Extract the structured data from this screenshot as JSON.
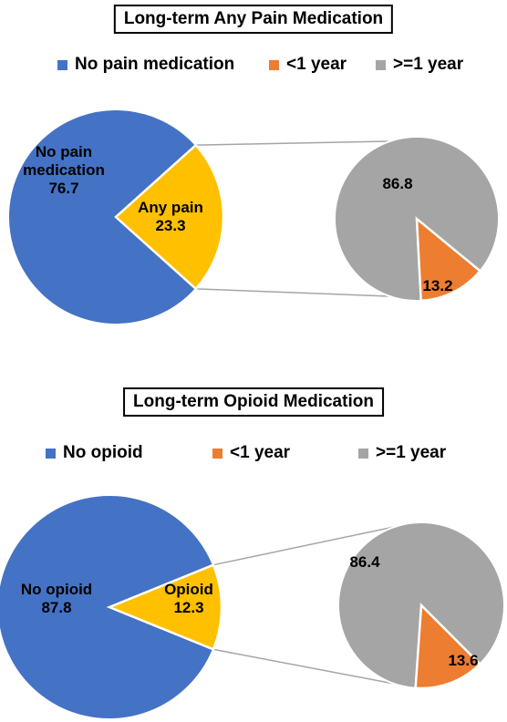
{
  "chart_data": [
    {
      "type": "pie",
      "title": "Long-term Any Pain Medication",
      "main_pie": {
        "slices": [
          {
            "name": "No pain medication",
            "value": 76.7,
            "label_lines": [
              "No pain",
              "medication",
              "76.7"
            ],
            "color": "#4472C4"
          },
          {
            "name": "Any pain",
            "value": 23.3,
            "label_lines": [
              "Any pain",
              "23.3"
            ],
            "color": "#FFC000"
          }
        ]
      },
      "sub_pie": {
        "slices": [
          {
            "name": ">=1 year",
            "value": 86.8,
            "label": "86.8",
            "color": "#A5A5A5"
          },
          {
            "name": "<1 year",
            "value": 13.2,
            "label": "13.2",
            "color": "#ED7D31"
          }
        ]
      },
      "legend": [
        {
          "label": "No pain medication",
          "color": "#4472C4"
        },
        {
          "label": "<1 year",
          "color": "#ED7D31"
        },
        {
          "label": ">=1 year",
          "color": "#A5A5A5"
        }
      ],
      "legend_position": "top"
    },
    {
      "type": "pie",
      "title": "Long-term Opioid Medication",
      "main_pie": {
        "slices": [
          {
            "name": "No opioid",
            "value": 87.8,
            "label_lines": [
              "No opioid",
              "87.8"
            ],
            "color": "#4472C4"
          },
          {
            "name": "Opioid",
            "value": 12.3,
            "label_lines": [
              "Opioid",
              "12.3"
            ],
            "color": "#FFC000"
          }
        ]
      },
      "sub_pie": {
        "slices": [
          {
            "name": ">=1 year",
            "value": 86.4,
            "label": "86.4",
            "color": "#A5A5A5"
          },
          {
            "name": "<1 year",
            "value": 13.6,
            "label": "13.6",
            "color": "#ED7D31"
          }
        ]
      },
      "legend": [
        {
          "label": "No opioid",
          "color": "#4472C4"
        },
        {
          "label": "<1 year",
          "color": "#ED7D31"
        },
        {
          "label": ">=1 year",
          "color": "#A5A5A5"
        }
      ],
      "legend_position": "top"
    }
  ]
}
